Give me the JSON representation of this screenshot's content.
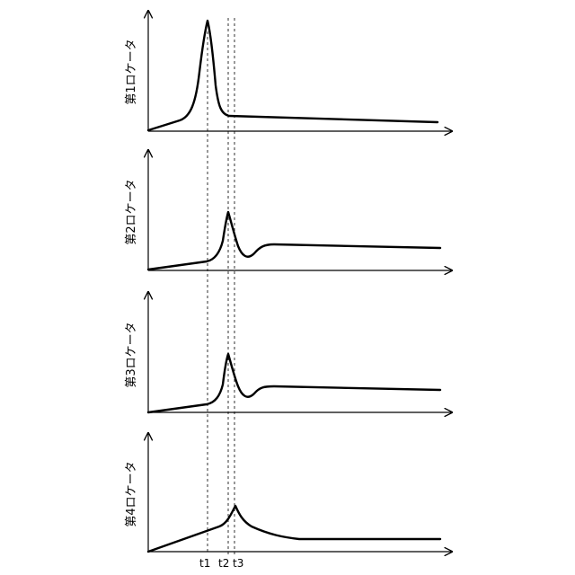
{
  "panels": [
    {
      "id": "panel-1",
      "ylabel": "第1ロケータ"
    },
    {
      "id": "panel-2",
      "ylabel": "第2ロケータ"
    },
    {
      "id": "panel-3",
      "ylabel": "第3ロケータ"
    },
    {
      "id": "panel-4",
      "ylabel": "第4ロケータ"
    }
  ],
  "time_marks": [
    "t1",
    "t2",
    "t3"
  ]
}
